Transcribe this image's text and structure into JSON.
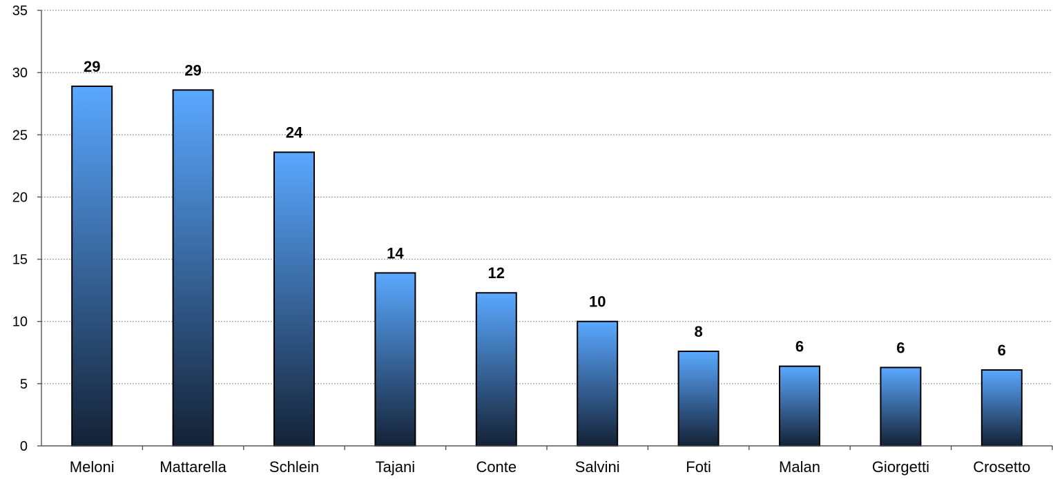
{
  "chart_data": {
    "type": "bar",
    "categories": [
      "Meloni",
      "Mattarella",
      "Schlein",
      "Tajani",
      "Conte",
      "Salvini",
      "Foti",
      "Malan",
      "Giorgetti",
      "Crosetto"
    ],
    "values": [
      28.9,
      28.6,
      23.6,
      13.9,
      12.3,
      10.0,
      7.6,
      6.4,
      6.3,
      6.1
    ],
    "data_labels": [
      "29",
      "29",
      "24",
      "14",
      "12",
      "10",
      "8",
      "6",
      "6",
      "6"
    ],
    "ylim": [
      0,
      35
    ],
    "yticks": [
      0,
      5,
      10,
      15,
      20,
      25,
      30,
      35
    ],
    "ytick_labels": [
      "0",
      "5",
      "10",
      "15",
      "20",
      "25",
      "30",
      "35"
    ],
    "grid": true,
    "bar_color_top": "#5aa8ff",
    "bar_color_bottom": "#142236",
    "xlabel": "",
    "ylabel": "",
    "title": ""
  }
}
